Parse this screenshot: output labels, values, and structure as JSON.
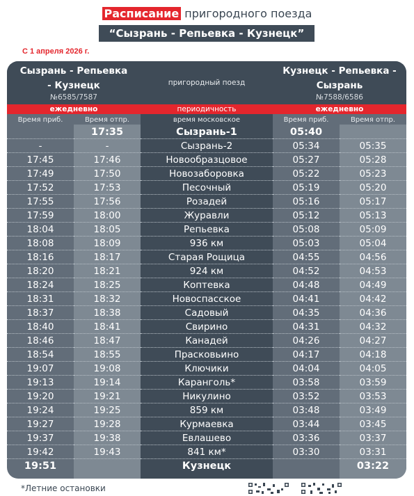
{
  "header": {
    "title_highlight": "Расписание",
    "title_rest": "пригородного поезда",
    "route": "“Сызрань - Репьевка - Кузнецк”",
    "since": "С 1 апреля 2026 г."
  },
  "left": {
    "name_line1": "Сызрань - Репьевка",
    "name_line2": "- Кузнецк",
    "number": "№6585/7587",
    "days": "ежедневно",
    "col_arr": "Время приб.",
    "col_dep": "Время отпр."
  },
  "middle": {
    "type": "пригородный поезд",
    "periodicity": "периодичность",
    "time_note": "время московское"
  },
  "right": {
    "name_line1": "Кузнецк - Репьевка -",
    "name_line2": "Сызрань",
    "number": "№7588/6586",
    "days": "ежедневно",
    "col_arr": "Время приб.",
    "col_dep": "Время отпр."
  },
  "stops": [
    {
      "la": "",
      "ld": "17:35",
      "name": "Сызрань-1",
      "ra": "05:40",
      "rd": ""
    },
    {
      "la": "-",
      "ld": "-",
      "name": "Сызрань-2",
      "ra": "05:34",
      "rd": "05:35"
    },
    {
      "la": "17:45",
      "ld": "17:46",
      "name": "Новообразцовое",
      "ra": "05:27",
      "rd": "05:28"
    },
    {
      "la": "17:49",
      "ld": "17:50",
      "name": "Новозаборовка",
      "ra": "05:22",
      "rd": "05:23"
    },
    {
      "la": "17:52",
      "ld": "17:53",
      "name": "Песочный",
      "ra": "05:19",
      "rd": "05:20"
    },
    {
      "la": "17:55",
      "ld": "17:56",
      "name": "Розадей",
      "ra": "05:16",
      "rd": "05:17"
    },
    {
      "la": "17:59",
      "ld": "18:00",
      "name": "Журавли",
      "ra": "05:12",
      "rd": "05:13"
    },
    {
      "la": "18:04",
      "ld": "18:05",
      "name": "Репьевка",
      "ra": "05:08",
      "rd": "05:09"
    },
    {
      "la": "18:08",
      "ld": "18:09",
      "name": "936 км",
      "ra": "05:03",
      "rd": "05:04"
    },
    {
      "la": "18:16",
      "ld": "18:17",
      "name": "Старая Рощица",
      "ra": "04:55",
      "rd": "04:56"
    },
    {
      "la": "18:20",
      "ld": "18:21",
      "name": "924 км",
      "ra": "04:52",
      "rd": "04:53"
    },
    {
      "la": "18:24",
      "ld": "18:25",
      "name": "Коптевка",
      "ra": "04:48",
      "rd": "04:49"
    },
    {
      "la": "18:31",
      "ld": "18:32",
      "name": "Новоспасское",
      "ra": "04:41",
      "rd": "04:42"
    },
    {
      "la": "18:37",
      "ld": "18:38",
      "name": "Садовый",
      "ra": "04:35",
      "rd": "04:36"
    },
    {
      "la": "18:40",
      "ld": "18:41",
      "name": "Свирино",
      "ra": "04:31",
      "rd": "04:32"
    },
    {
      "la": "18:46",
      "ld": "18:47",
      "name": "Канадей",
      "ra": "04:26",
      "rd": "04:27"
    },
    {
      "la": "18:54",
      "ld": "18:55",
      "name": "Прасковьино",
      "ra": "04:17",
      "rd": "04:18"
    },
    {
      "la": "19:07",
      "ld": "19:08",
      "name": "Ключики",
      "ra": "04:04",
      "rd": "04:05"
    },
    {
      "la": "19:13",
      "ld": "19:14",
      "name": "Каранголь*",
      "ra": "03:58",
      "rd": "03:59"
    },
    {
      "la": "19:20",
      "ld": "19:21",
      "name": "Никулино",
      "ra": "03:52",
      "rd": "03:53"
    },
    {
      "la": "19:24",
      "ld": "19:25",
      "name": "859 км",
      "ra": "03:48",
      "rd": "03:49"
    },
    {
      "la": "19:27",
      "ld": "19:28",
      "name": "Курмаевка",
      "ra": "03:44",
      "rd": "03:45"
    },
    {
      "la": "19:37",
      "ld": "19:38",
      "name": "Евлашево",
      "ra": "03:36",
      "rd": "03:37"
    },
    {
      "la": "19:42",
      "ld": "19:43",
      "name": "841 км*",
      "ra": "03:30",
      "rd": "03:31"
    },
    {
      "la": "19:51",
      "ld": "",
      "name": "Кузнецк",
      "ra": "",
      "rd": "03:22"
    }
  ],
  "footer": {
    "note": "*Летние остановки",
    "qr1_icon": "qr-code-icon",
    "qr2_icon": "qr-code-icon"
  },
  "colors": {
    "accent_red": "#e4262d",
    "dark": "#3f4b57",
    "mid": "#626d79",
    "light": "#7e8993"
  }
}
